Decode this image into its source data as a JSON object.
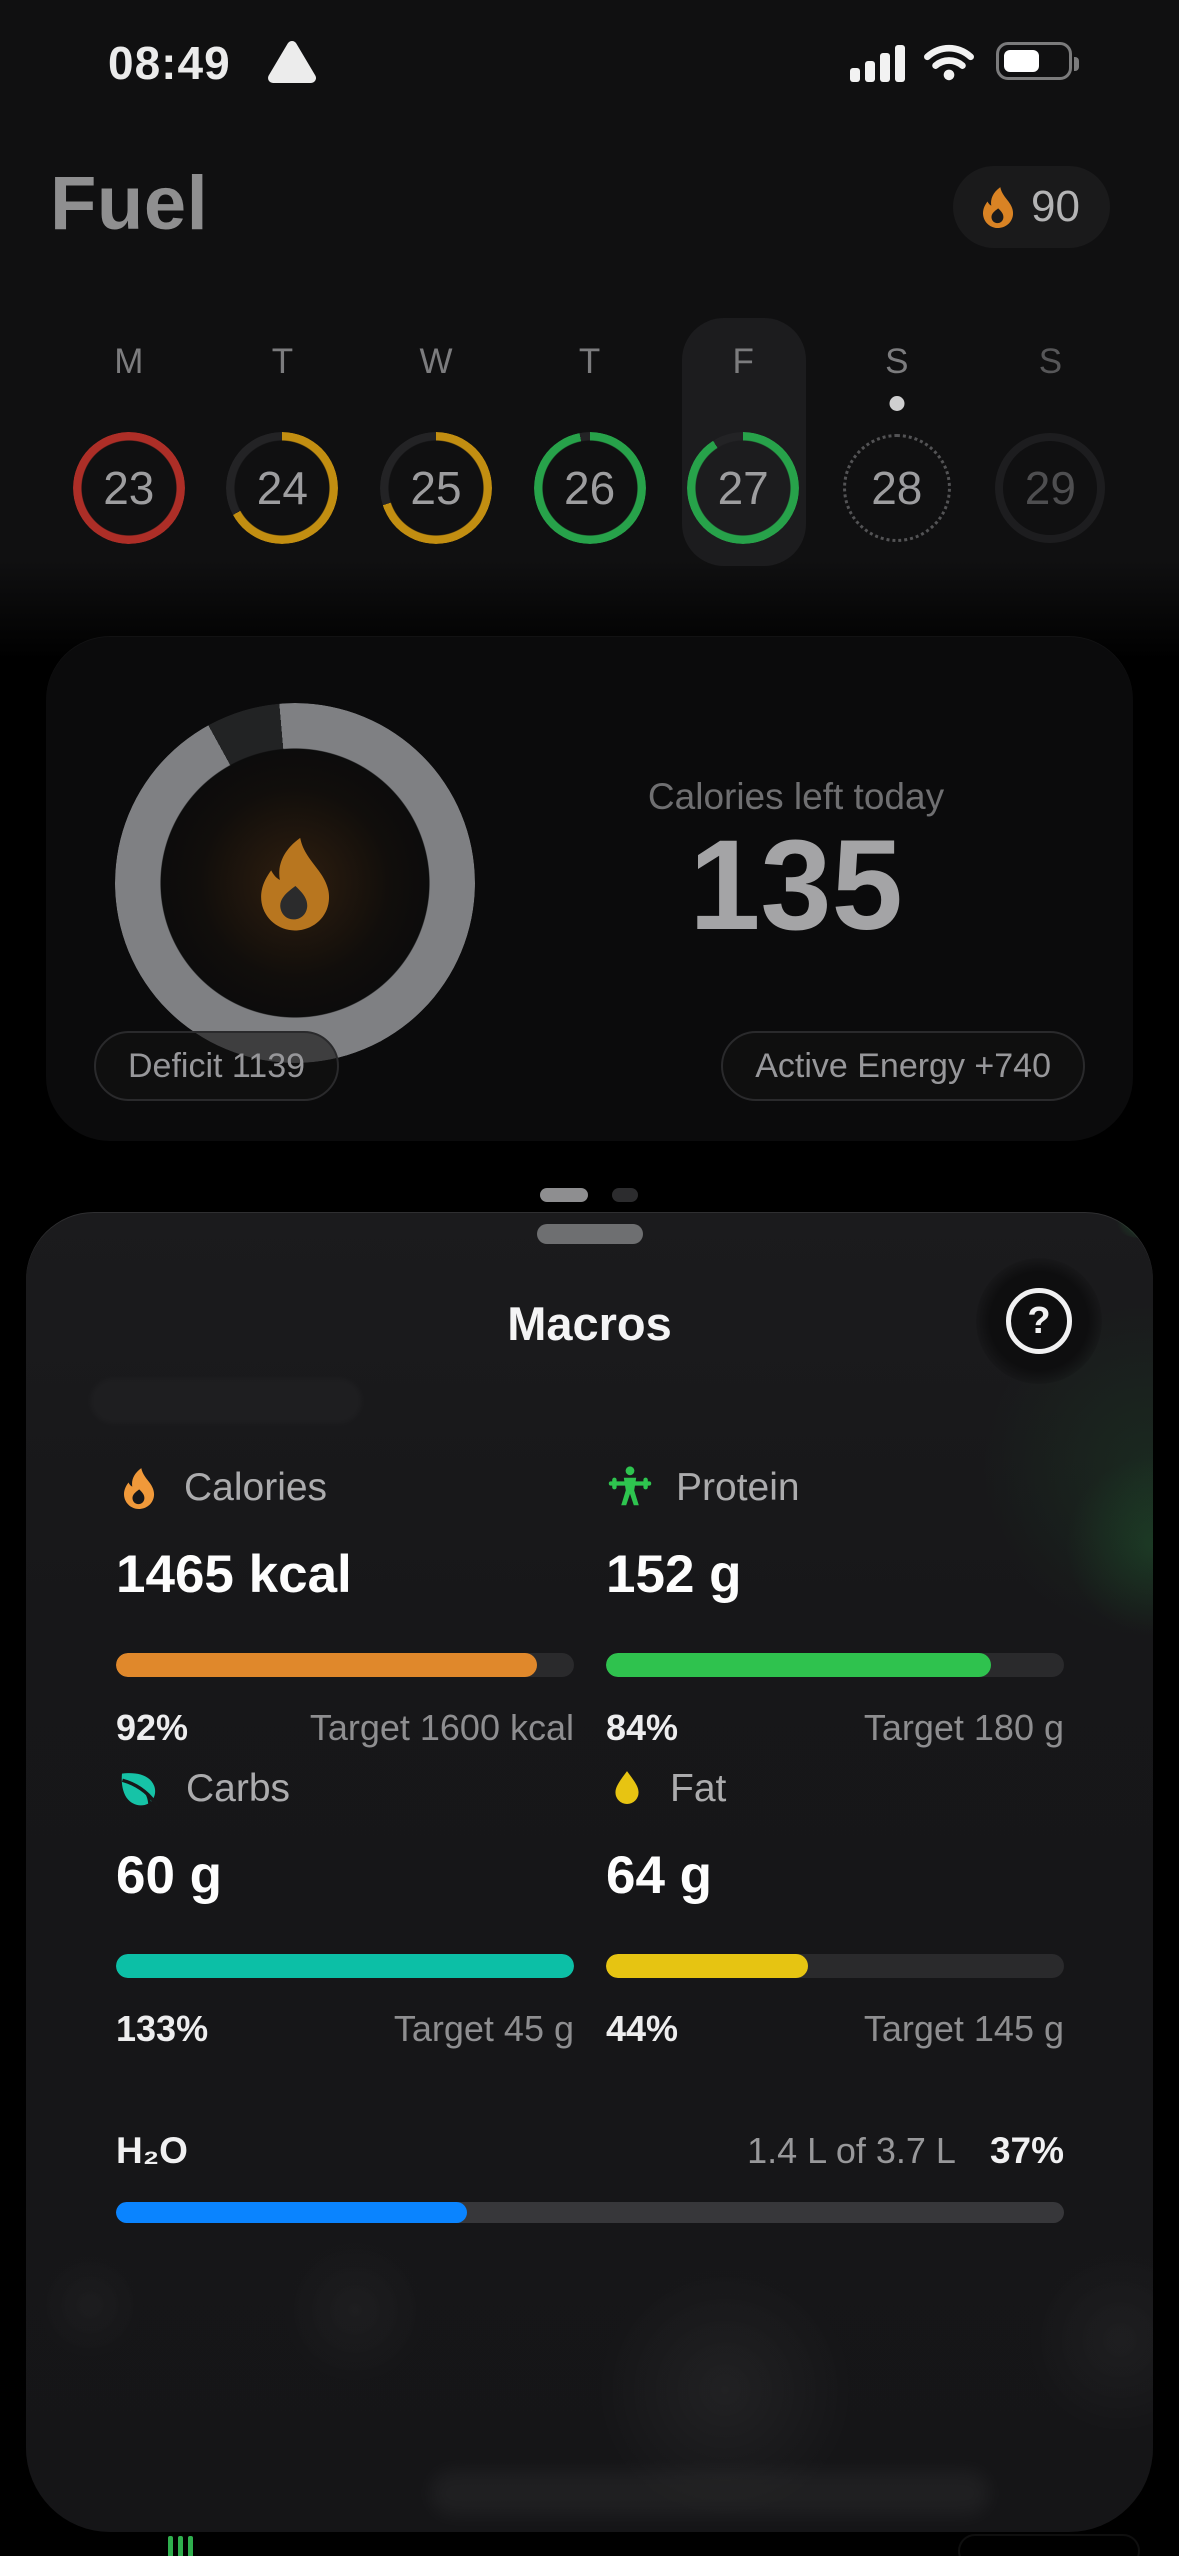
{
  "status_bar": {
    "time": "08:49",
    "battery": {
      "fill": 50,
      "color": "#ffffff"
    }
  },
  "header": {
    "title": "Fuel",
    "streak_badge": {
      "value": "90",
      "flame_color": "#d98324"
    }
  },
  "week": {
    "day_letters": [
      "M",
      "T",
      "W",
      "T",
      "F",
      "S",
      "S"
    ],
    "days": [
      {
        "date": "23",
        "state": "complete",
        "ring": {
          "progress": 100,
          "color": "#ad2e27",
          "track": "#232325"
        }
      },
      {
        "date": "24",
        "state": "partial",
        "ring": {
          "progress": 67,
          "color": "#c28e11",
          "track": "#232325"
        }
      },
      {
        "date": "25",
        "state": "partial",
        "ring": {
          "progress": 70,
          "color": "#c28e11",
          "track": "#232325"
        }
      },
      {
        "date": "26",
        "state": "partial",
        "ring": {
          "progress": 97,
          "color": "#27a24a",
          "track": "#232325"
        }
      },
      {
        "date": "27",
        "state": "today-selected",
        "ring": {
          "progress": 91,
          "color": "#27a24a",
          "track": "#232325"
        }
      },
      {
        "date": "28",
        "state": "upcoming-dotted",
        "has_dot_above": true
      },
      {
        "date": "29",
        "state": "upcoming"
      }
    ]
  },
  "calories_card": {
    "label": "Calories left today",
    "value": "135",
    "left_pill": "Deficit 1139",
    "right_pill": "Active Energy +740",
    "ring": {
      "progress": 92,
      "color": "#7f8083",
      "track": "#222324",
      "sliver": true
    }
  },
  "page_indicator": {
    "pages": 2,
    "active_page": 1
  },
  "sheet": {
    "title": "Macros",
    "help_label": "?",
    "macros": [
      {
        "icon": "flame-icon",
        "label": "Calories",
        "value": "1465 kcal",
        "percent": "92%",
        "target": "Target 1600 kcal",
        "bar": {
          "fill": 92,
          "color": "#e0882b"
        }
      },
      {
        "icon": "lifter-icon",
        "label": "Protein",
        "value": "152 g",
        "percent": "84%",
        "target": "Target 180 g",
        "bar": {
          "fill": 84,
          "color": "#2fc24e"
        }
      },
      {
        "icon": "leaf-icon",
        "label": "Carbs",
        "value": "60 g",
        "percent": "133%",
        "target": "Target 45 g",
        "bar": {
          "fill": 100,
          "color": "#0cbfa6"
        }
      },
      {
        "icon": "droplet-icon",
        "label": "Fat",
        "value": "64 g",
        "percent": "44%",
        "target": "Target 145 g",
        "bar": {
          "fill": 44,
          "color": "#e6c412"
        }
      }
    ],
    "water": {
      "label": "H₂O",
      "amount": "1.4 L of 3.7 L",
      "percent": "37%",
      "bar": {
        "fill": 37,
        "color": "#0a84ff"
      }
    }
  }
}
